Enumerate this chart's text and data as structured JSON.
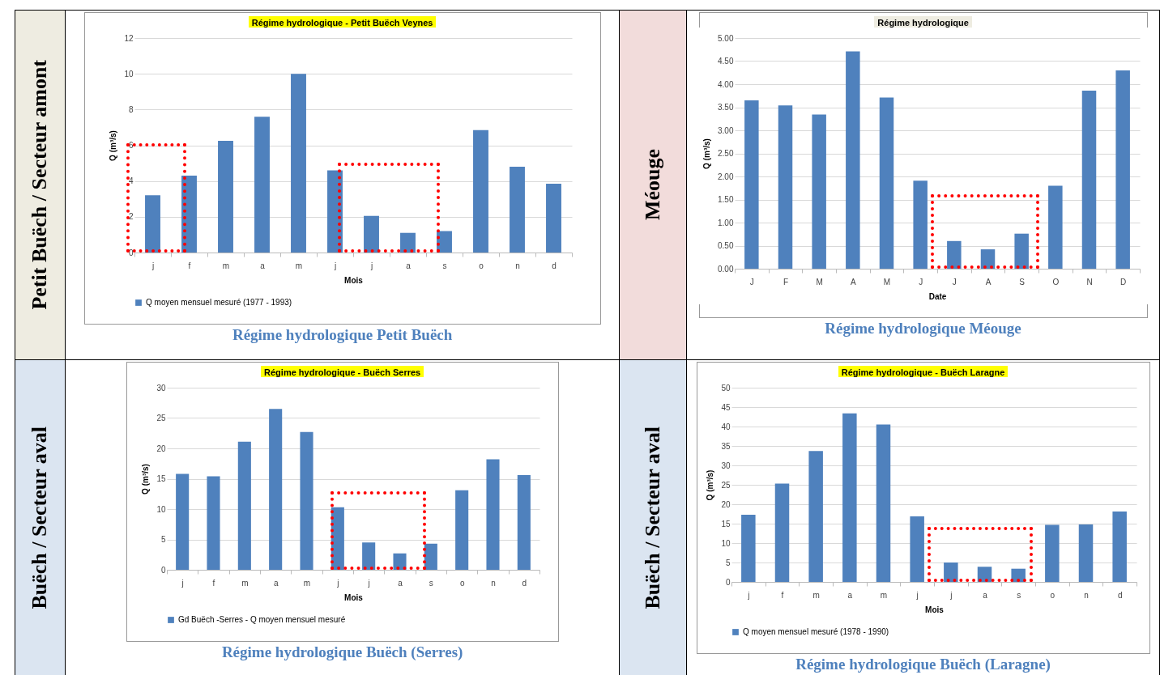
{
  "chart_data": [
    {
      "type": "bar",
      "title": "Régime hydrologique - Petit Buëch Veynes",
      "xlabel": "Mois",
      "ylabel": "Q (m³/s)",
      "annotations": [
        "Petit Buëch / Secteur amont",
        "Régime hydrologique Petit Buëch"
      ],
      "categories": [
        "j",
        "f",
        "m",
        "a",
        "m",
        "j",
        "j",
        "a",
        "s",
        "o",
        "n",
        "d"
      ],
      "series": [
        {
          "name": "Q moyen mensuel mesuré (1977 - 1993)",
          "color": "#4f81bd",
          "values": [
            3.2,
            4.3,
            6.25,
            7.6,
            10.0,
            4.6,
            2.05,
            1.1,
            1.2,
            6.85,
            4.8,
            3.85
          ]
        }
      ],
      "ylim": [
        0,
        12
      ],
      "yticks": [
        0,
        2,
        4,
        6,
        8,
        10,
        12
      ],
      "grid": "y",
      "legend": "bottom"
    },
    {
      "type": "bar",
      "title": "Régime hydrologique",
      "xlabel": "Date",
      "ylabel": "Q (m³/s)",
      "annotations": [
        "Méouge",
        "Régime hydrologique Méouge"
      ],
      "categories": [
        "J",
        "F",
        "M",
        "A",
        "M",
        "J",
        "J",
        "A",
        "S",
        "O",
        "N",
        "D"
      ],
      "series": [
        {
          "color": "#4f81bd",
          "values": [
            3.65,
            3.54,
            3.34,
            4.71,
            3.71,
            1.91,
            0.6,
            0.42,
            0.76,
            1.8,
            3.86,
            4.3
          ]
        }
      ],
      "ylim": [
        0,
        5
      ],
      "yticks": [
        {
          "value": 0,
          "label": "0.00"
        },
        {
          "value": 0.5,
          "label": "0.50"
        },
        {
          "value": 1,
          "label": "1.00"
        },
        {
          "value": 1.5,
          "label": "1.50"
        },
        {
          "value": 2,
          "label": "2.00"
        },
        {
          "value": 2.5,
          "label": "2.50"
        },
        {
          "value": 3,
          "label": "3.00"
        },
        {
          "value": 3.5,
          "label": "3.50"
        },
        {
          "value": 4,
          "label": "4.00"
        },
        {
          "value": 4.5,
          "label": "4.50"
        },
        {
          "value": 5,
          "label": "5.00"
        }
      ],
      "grid": "y"
    },
    {
      "type": "bar",
      "title": "Régime hydrologique - Buëch Serres",
      "xlabel": "Mois",
      "ylabel": "Q (m³/s)",
      "annotations": [
        "Buëch / Secteur aval",
        "Régime hydrologique Buëch (Serres)"
      ],
      "categories": [
        "j",
        "f",
        "m",
        "a",
        "m",
        "j",
        "j",
        "a",
        "s",
        "o",
        "n",
        "d"
      ],
      "series": [
        {
          "name": "Gd Buëch -Serres - Q moyen mensuel mesuré",
          "color": "#4f81bd",
          "values": [
            15.8,
            15.4,
            21.1,
            26.5,
            22.7,
            10.3,
            4.5,
            2.7,
            4.3,
            13.1,
            18.2,
            15.6
          ]
        }
      ],
      "ylim": [
        0,
        30
      ],
      "yticks": [
        0,
        5,
        10,
        15,
        20,
        25,
        30
      ],
      "grid": "y",
      "legend": "bottom"
    },
    {
      "type": "bar",
      "title": "Régime hydrologique - Buëch Laragne",
      "xlabel": "Mois",
      "ylabel": "Q (m³/s)",
      "annotations": [
        "Buëch / Secteur aval",
        "Régime hydrologique Buëch (Laragne)"
      ],
      "categories": [
        "j",
        "f",
        "m",
        "a",
        "m",
        "j",
        "j",
        "a",
        "s",
        "o",
        "n",
        "d"
      ],
      "series": [
        {
          "name": "Q moyen mensuel mesuré (1978 - 1990)",
          "color": "#4f81bd",
          "values": [
            17.3,
            25.3,
            33.7,
            43.4,
            40.5,
            16.9,
            5.0,
            3.9,
            3.4,
            14.7,
            14.8,
            18.1
          ]
        }
      ],
      "ylim": [
        0,
        50
      ],
      "yticks": [
        0,
        5,
        10,
        15,
        20,
        25,
        30,
        35,
        40,
        45,
        50
      ],
      "grid": "y",
      "legend": "bottom"
    }
  ]
}
